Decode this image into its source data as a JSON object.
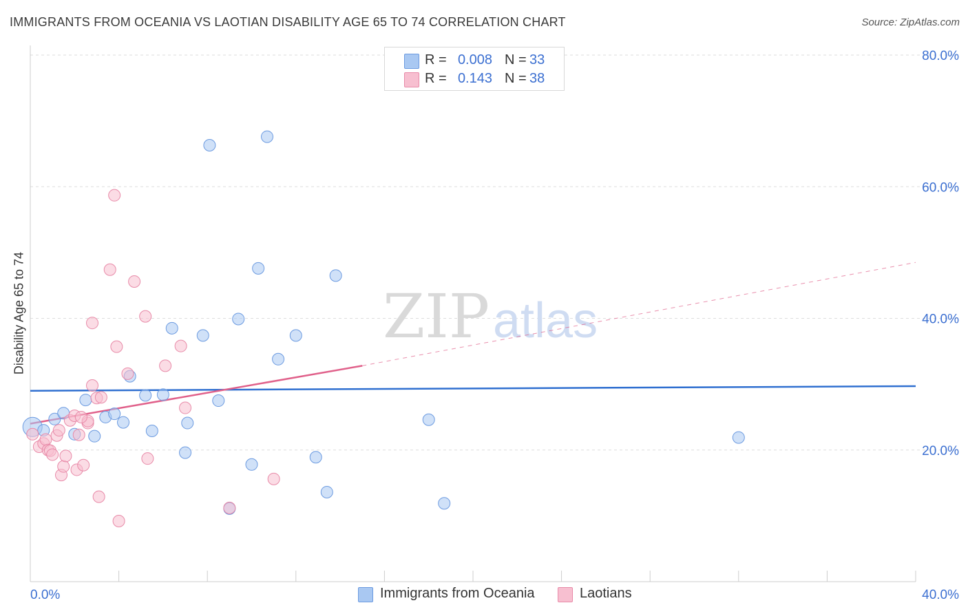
{
  "title": "IMMIGRANTS FROM OCEANIA VS LAOTIAN DISABILITY AGE 65 TO 74 CORRELATION CHART",
  "source": "Source: ZipAtlas.com",
  "watermark": {
    "zip": "ZIP",
    "atlas": "atlas"
  },
  "legend": {
    "rows": [
      {
        "r_label": "R =",
        "r_value": "0.008",
        "n_label": "N =",
        "n_value": "33",
        "color": "#a9c8f2",
        "border": "#6b9ae0"
      },
      {
        "r_label": "R =",
        "r_value": "0.143",
        "n_label": "N =",
        "n_value": "38",
        "color": "#f7bfd0",
        "border": "#e88aa8"
      }
    ]
  },
  "bottom_legend": [
    {
      "label": "Immigrants from Oceania",
      "color": "#a9c8f2",
      "border": "#6b9ae0"
    },
    {
      "label": "Laotians",
      "color": "#f7bfd0",
      "border": "#e88aa8"
    }
  ],
  "chart_data": {
    "type": "scatter",
    "title": "IMMIGRANTS FROM OCEANIA VS LAOTIAN DISABILITY AGE 65 TO 74 CORRELATION CHART",
    "xlabel": "",
    "ylabel": "Disability Age 65 to 74",
    "xlim": [
      0,
      40
    ],
    "ylim": [
      0,
      80
    ],
    "x_tick_labels": [
      "0.0%",
      "40.0%"
    ],
    "y_tick_labels": [
      "20.0%",
      "40.0%",
      "60.0%",
      "80.0%"
    ],
    "y_ticks": [
      20,
      40,
      60,
      80
    ],
    "grid": true,
    "series": [
      {
        "name": "Immigrants from Oceania",
        "color": "#6b9ae0",
        "fill": "#a9c8f2",
        "trend_color": "#2f6fd0",
        "trend": {
          "x0": 0,
          "y0": 29.0,
          "x1": 40,
          "y1": 29.7
        },
        "points": [
          [
            0.1,
            23.5
          ],
          [
            0.6,
            23.0
          ],
          [
            1.1,
            24.7
          ],
          [
            1.5,
            25.6
          ],
          [
            2.0,
            22.4
          ],
          [
            2.5,
            27.6
          ],
          [
            2.9,
            22.1
          ],
          [
            3.4,
            25.0
          ],
          [
            3.8,
            25.5
          ],
          [
            4.2,
            24.2
          ],
          [
            4.5,
            31.2
          ],
          [
            5.2,
            28.3
          ],
          [
            5.5,
            22.9
          ],
          [
            6.0,
            28.4
          ],
          [
            6.4,
            38.5
          ],
          [
            7.0,
            19.6
          ],
          [
            7.1,
            24.1
          ],
          [
            7.8,
            37.4
          ],
          [
            8.1,
            66.3
          ],
          [
            8.5,
            27.5
          ],
          [
            9.0,
            11.1
          ],
          [
            9.4,
            39.9
          ],
          [
            10.0,
            17.8
          ],
          [
            10.3,
            47.6
          ],
          [
            10.7,
            67.6
          ],
          [
            11.2,
            33.8
          ],
          [
            12.0,
            37.4
          ],
          [
            12.9,
            18.9
          ],
          [
            13.4,
            13.6
          ],
          [
            13.8,
            46.5
          ],
          [
            18.0,
            24.6
          ],
          [
            18.7,
            11.9
          ],
          [
            32.0,
            21.9
          ]
        ]
      },
      {
        "name": "Laotians",
        "color": "#e88aa8",
        "fill": "#f7bfd0",
        "trend_color": "#e0608a",
        "trend": {
          "x0": 0,
          "y0": 24.0,
          "x1": 15,
          "y1": 32.8
        },
        "trend_dashed": {
          "x0": 15,
          "y0": 32.8,
          "x1": 40,
          "y1": 48.5
        },
        "points": [
          [
            0.1,
            22.4
          ],
          [
            0.4,
            20.5
          ],
          [
            0.6,
            21.0
          ],
          [
            0.7,
            21.6
          ],
          [
            0.8,
            20.0
          ],
          [
            0.9,
            19.9
          ],
          [
            1.0,
            19.3
          ],
          [
            1.2,
            22.2
          ],
          [
            1.3,
            23.0
          ],
          [
            1.4,
            16.2
          ],
          [
            1.5,
            17.5
          ],
          [
            1.6,
            19.1
          ],
          [
            1.8,
            24.5
          ],
          [
            2.0,
            25.2
          ],
          [
            2.1,
            17.0
          ],
          [
            2.2,
            22.3
          ],
          [
            2.4,
            17.7
          ],
          [
            2.6,
            24.1
          ],
          [
            2.8,
            39.3
          ],
          [
            2.8,
            29.8
          ],
          [
            3.0,
            27.9
          ],
          [
            3.1,
            12.9
          ],
          [
            3.2,
            28.0
          ],
          [
            3.6,
            47.4
          ],
          [
            3.8,
            58.7
          ],
          [
            3.9,
            35.7
          ],
          [
            4.0,
            9.2
          ],
          [
            4.4,
            31.6
          ],
          [
            4.7,
            45.6
          ],
          [
            5.2,
            40.3
          ],
          [
            5.3,
            18.7
          ],
          [
            6.1,
            32.8
          ],
          [
            6.8,
            35.8
          ],
          [
            7.0,
            26.4
          ],
          [
            9.0,
            11.2
          ],
          [
            2.6,
            24.4
          ],
          [
            11.0,
            15.6
          ],
          [
            2.3,
            25.0
          ]
        ]
      }
    ]
  }
}
